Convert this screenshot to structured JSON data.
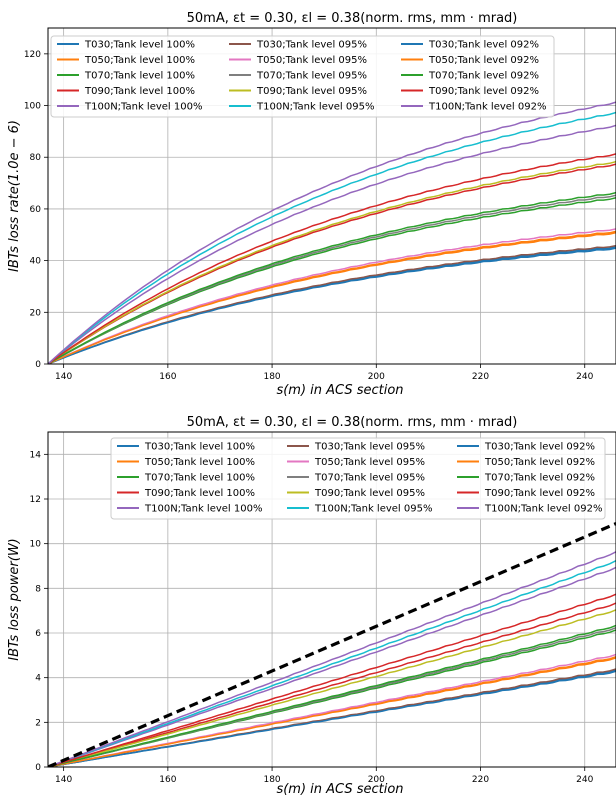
{
  "chart_data": [
    {
      "type": "line",
      "title": "50mA, εt = 0.30, εl = 0.38(norm. rms, mm · mrad)",
      "xlabel": "s(m) in ACS section",
      "ylabel": "IBTs loss rate(1.0e − 6)",
      "xlim": [
        137,
        246
      ],
      "ylim": [
        0,
        130
      ],
      "xticks": [
        "140",
        "160",
        "180",
        "200",
        "220",
        "240"
      ],
      "yticks": [
        "0",
        "20",
        "40",
        "60",
        "80",
        "100",
        "120"
      ],
      "grid": true,
      "legend_placement": "top-left, 3 columns",
      "curve_shape": "concave",
      "series": [
        {
          "name": "T030;Tank level 100%",
          "color": "#1f77b4",
          "x": [
            137,
            246
          ],
          "y": [
            0,
            45
          ]
        },
        {
          "name": "T050;Tank level 100%",
          "color": "#ff7f0e",
          "x": [
            137,
            246
          ],
          "y": [
            0,
            51
          ]
        },
        {
          "name": "T070;Tank level 100%",
          "color": "#2ca02c",
          "x": [
            137,
            246
          ],
          "y": [
            0,
            64
          ]
        },
        {
          "name": "T090;Tank level 100%",
          "color": "#d62728",
          "x": [
            137,
            246
          ],
          "y": [
            0,
            77
          ]
        },
        {
          "name": "T100N;Tank level 100%",
          "color": "#9467bd",
          "x": [
            137,
            246
          ],
          "y": [
            0,
            92
          ]
        },
        {
          "name": "T030;Tank level 095%",
          "color": "#8c564b",
          "x": [
            137,
            246
          ],
          "y": [
            0,
            45.5
          ]
        },
        {
          "name": "T050;Tank level 095%",
          "color": "#e377c2",
          "x": [
            137,
            246
          ],
          "y": [
            0,
            52
          ]
        },
        {
          "name": "T070;Tank level 095%",
          "color": "#7f7f7f",
          "x": [
            137,
            246
          ],
          "y": [
            0,
            65
          ]
        },
        {
          "name": "T090;Tank level 095%",
          "color": "#bcbd22",
          "x": [
            137,
            246
          ],
          "y": [
            0,
            78
          ]
        },
        {
          "name": "T100N;Tank level 095%",
          "color": "#17becf",
          "x": [
            137,
            246
          ],
          "y": [
            0,
            97
          ]
        },
        {
          "name": "T030;Tank level 092%",
          "color": "#1f77b4",
          "x": [
            137,
            246
          ],
          "y": [
            0,
            44.5
          ]
        },
        {
          "name": "T050;Tank level 092%",
          "color": "#ff7f0e",
          "x": [
            137,
            246
          ],
          "y": [
            0,
            50.5
          ]
        },
        {
          "name": "T070;Tank level 092%",
          "color": "#2ca02c",
          "x": [
            137,
            246
          ],
          "y": [
            0,
            66
          ]
        },
        {
          "name": "T090;Tank level 092%",
          "color": "#d62728",
          "x": [
            137,
            246
          ],
          "y": [
            0,
            81
          ]
        },
        {
          "name": "T100N;Tank level 092%",
          "color": "#9467bd",
          "x": [
            137,
            246
          ],
          "y": [
            0,
            101
          ]
        }
      ]
    },
    {
      "type": "line",
      "title": "50mA, εt = 0.30, εl = 0.38(norm. rms, mm · mrad)",
      "xlabel": "s(m) in ACS section",
      "ylabel": "IBTs loss power(W)",
      "xlim": [
        137,
        246
      ],
      "ylim": [
        0,
        15
      ],
      "xticks": [
        "140",
        "160",
        "180",
        "200",
        "220",
        "240"
      ],
      "yticks": [
        "0",
        "2",
        "4",
        "6",
        "8",
        "10",
        "12",
        "14"
      ],
      "grid": true,
      "legend_placement": "top-right, 3 columns",
      "curve_shape": "linear",
      "series": [
        {
          "name": "T030;Tank level 100%",
          "color": "#1f77b4",
          "x": [
            137,
            246
          ],
          "y": [
            0,
            4.3
          ]
        },
        {
          "name": "T050;Tank level 100%",
          "color": "#ff7f0e",
          "x": [
            137,
            246
          ],
          "y": [
            0,
            4.9
          ]
        },
        {
          "name": "T070;Tank level 100%",
          "color": "#2ca02c",
          "x": [
            137,
            246
          ],
          "y": [
            0,
            6.1
          ]
        },
        {
          "name": "T090;Tank level 100%",
          "color": "#d62728",
          "x": [
            137,
            246
          ],
          "y": [
            0,
            7.3
          ]
        },
        {
          "name": "T100N;Tank level 100%",
          "color": "#9467bd",
          "x": [
            137,
            246
          ],
          "y": [
            0,
            8.9
          ]
        },
        {
          "name": "T030;Tank level 095%",
          "color": "#8c564b",
          "x": [
            137,
            246
          ],
          "y": [
            0,
            4.35
          ]
        },
        {
          "name": "T050;Tank level 095%",
          "color": "#e377c2",
          "x": [
            137,
            246
          ],
          "y": [
            0,
            5.0
          ]
        },
        {
          "name": "T070;Tank level 095%",
          "color": "#7f7f7f",
          "x": [
            137,
            246
          ],
          "y": [
            0,
            6.2
          ]
        },
        {
          "name": "T090;Tank level 095%",
          "color": "#bcbd22",
          "x": [
            137,
            246
          ],
          "y": [
            0,
            7.0
          ]
        },
        {
          "name": "T100N;Tank level 095%",
          "color": "#17becf",
          "x": [
            137,
            246
          ],
          "y": [
            0,
            9.2
          ]
        },
        {
          "name": "T030;Tank level 092%",
          "color": "#1f77b4",
          "x": [
            137,
            246
          ],
          "y": [
            0,
            4.25
          ]
        },
        {
          "name": "T050;Tank level 092%",
          "color": "#ff7f0e",
          "x": [
            137,
            246
          ],
          "y": [
            0,
            4.85
          ]
        },
        {
          "name": "T070;Tank level 092%",
          "color": "#2ca02c",
          "x": [
            137,
            246
          ],
          "y": [
            0,
            6.3
          ]
        },
        {
          "name": "T090;Tank level 092%",
          "color": "#d62728",
          "x": [
            137,
            246
          ],
          "y": [
            0,
            7.7
          ]
        },
        {
          "name": "T100N;Tank level 092%",
          "color": "#9467bd",
          "x": [
            137,
            246
          ],
          "y": [
            0,
            9.6
          ]
        }
      ],
      "reference_line": {
        "color": "#000000",
        "style": "dashed",
        "x": [
          137,
          246
        ],
        "y": [
          0,
          10.9
        ]
      }
    }
  ]
}
